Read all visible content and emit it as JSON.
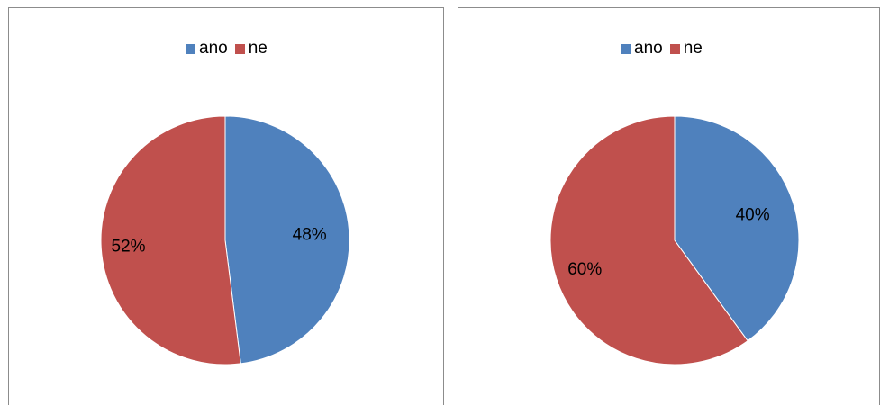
{
  "chart_data": [
    {
      "type": "pie",
      "categories": [
        "ano",
        "ne"
      ],
      "values": [
        48,
        52
      ],
      "labels": [
        "48%",
        "52%"
      ],
      "colors": [
        "#4F81BD",
        "#C0504D"
      ],
      "legend": "top"
    },
    {
      "type": "pie",
      "categories": [
        "ano",
        "ne"
      ],
      "values": [
        40,
        60
      ],
      "labels": [
        "40%",
        "60%"
      ],
      "colors": [
        "#4F81BD",
        "#C0504D"
      ],
      "legend": "top"
    }
  ]
}
